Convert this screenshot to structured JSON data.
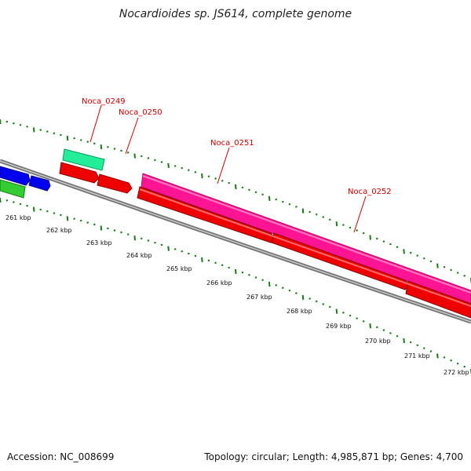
{
  "title": "Nocardioides sp. JS614, complete genome",
  "accession": "Accession: NC_008699",
  "stats": "Topology: circular; Length: 4,985,871 bp; Genes: 4,700",
  "colors": {
    "backbone": "#888888",
    "tick": "#1a7a1a",
    "forward_cds": "#ff1493",
    "reverse_cds": "#ee0000",
    "blue_gene": "#0000ee",
    "green_gene": "#33cc33",
    "teal_gene": "#22ee99",
    "label": "#cc0000"
  },
  "scale_labels": [
    "261 kbp",
    "262 kbp",
    "263 kbp",
    "264 kbp",
    "265 kbp",
    "266 kbp",
    "267 kbp",
    "268 kbp",
    "269 kbp",
    "270 kbp",
    "271 kbp",
    "272 kbp"
  ],
  "gene_labels": [
    "Noca_0249",
    "Noca_0250",
    "Noca_0251",
    "Noca_0252"
  ]
}
